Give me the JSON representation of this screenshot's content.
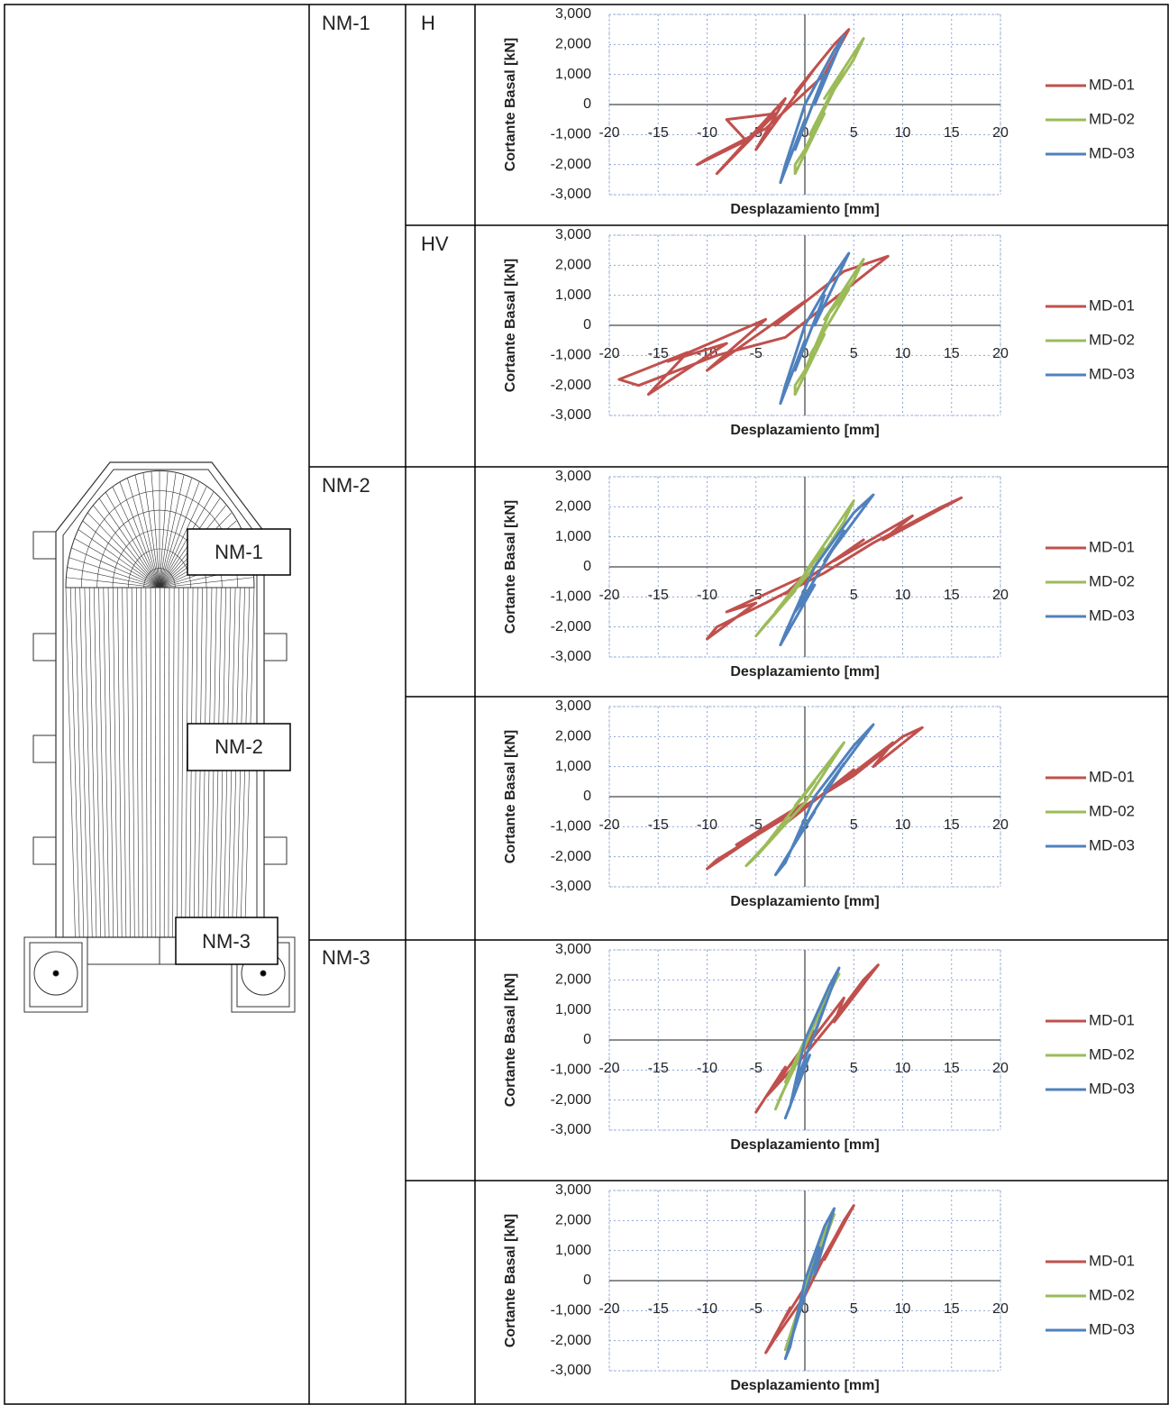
{
  "table": {
    "nm1": "NM-1",
    "h": "H",
    "hv": "HV",
    "nm2": "NM-2",
    "nm3": "NM-3"
  },
  "drawing": {
    "labels": [
      "NM-1",
      "NM-2",
      "NM-3"
    ]
  },
  "chart_data": [
    {
      "type": "line",
      "xlabel": "Desplazamiento [mm]",
      "ylabel": "Cortante Basal [kN]",
      "xlim": [
        -20,
        20
      ],
      "ylim": [
        -3000,
        3000
      ],
      "xticks": [
        -20,
        -15,
        -10,
        -5,
        0,
        5,
        10,
        15,
        20
      ],
      "yticks": [
        {
          "value": -3000,
          "label": "-3,000"
        },
        {
          "value": -2000,
          "label": "-2,000"
        },
        {
          "value": -1000,
          "label": "-1,000"
        },
        0,
        {
          "value": 1000,
          "label": "1,000"
        },
        {
          "value": 2000,
          "label": "2,000"
        },
        {
          "value": 3000,
          "label": "3,000"
        }
      ],
      "grid": true,
      "series": [
        {
          "name": "MD-01",
          "color": "#c0504d",
          "x": [
            -11,
            -6,
            -8,
            -3,
            -9,
            -2,
            -5,
            1,
            -1,
            3,
            4.5,
            2,
            -4,
            -10
          ],
          "values": [
            -2000,
            -1200,
            -500,
            -300,
            -2300,
            200,
            -1500,
            1200,
            400,
            2000,
            2500,
            1000,
            -800,
            -1800
          ]
        },
        {
          "name": "MD-02",
          "color": "#9bbb59",
          "x": [
            -1,
            2,
            0.5,
            4,
            2,
            6,
            5,
            3,
            0,
            -1
          ],
          "values": [
            -2300,
            -300,
            -1000,
            1200,
            200,
            2200,
            1500,
            500,
            -1500,
            -2000
          ]
        },
        {
          "name": "MD-03",
          "color": "#4f81bd",
          "x": [
            -2.5,
            0,
            -1,
            2,
            1,
            4,
            3,
            0,
            -2
          ],
          "values": [
            -2600,
            -500,
            -1500,
            1000,
            0,
            2300,
            1800,
            0,
            -2000
          ]
        }
      ]
    },
    {
      "type": "line",
      "xlabel": "Desplazamiento [mm]",
      "ylabel": "Cortante Basal [kN]",
      "xlim": [
        -20,
        20
      ],
      "ylim": [
        -3000,
        3000
      ],
      "xticks": [
        -20,
        -15,
        -10,
        -5,
        0,
        5,
        10,
        15,
        20
      ],
      "yticks": [
        {
          "value": -3000,
          "label": "-3,000"
        },
        {
          "value": -2000,
          "label": "-2,000"
        },
        {
          "value": -1000,
          "label": "-1,000"
        },
        0,
        {
          "value": 1000,
          "label": "1,000"
        },
        {
          "value": 2000,
          "label": "2,000"
        },
        {
          "value": 3000,
          "label": "3,000"
        }
      ],
      "grid": true,
      "series": [
        {
          "name": "MD-01",
          "color": "#c0504d",
          "x": [
            -19,
            -12,
            -16,
            -8,
            -14,
            -4,
            -10,
            0,
            -3,
            4,
            8.5,
            5,
            -2,
            -9,
            -17
          ],
          "values": [
            -1800,
            -900,
            -2300,
            -600,
            -1200,
            200,
            -1500,
            800,
            0,
            1800,
            2300,
            1400,
            -400,
            -1000,
            -2000
          ]
        },
        {
          "name": "MD-02",
          "color": "#9bbb59",
          "x": [
            -1,
            2,
            0.5,
            4.5,
            2,
            6,
            5,
            2.5,
            0,
            -1
          ],
          "values": [
            -2300,
            -300,
            -1000,
            1200,
            200,
            2200,
            1500,
            400,
            -1500,
            -2000
          ]
        },
        {
          "name": "MD-03",
          "color": "#4f81bd",
          "x": [
            -2.5,
            0,
            -1,
            2,
            1,
            4.5,
            3,
            0,
            -2
          ],
          "values": [
            -2600,
            -500,
            -1500,
            1000,
            0,
            2400,
            1700,
            0,
            -2000
          ]
        }
      ]
    },
    {
      "type": "line",
      "xlabel": "Desplazamiento [mm]",
      "ylabel": "Cortante Basal [kN]",
      "xlim": [
        -20,
        20
      ],
      "ylim": [
        -3000,
        3000
      ],
      "xticks": [
        -20,
        -15,
        -10,
        -5,
        0,
        5,
        10,
        15,
        20
      ],
      "yticks": [
        {
          "value": -3000,
          "label": "-3,000"
        },
        {
          "value": -2000,
          "label": "-2,000"
        },
        {
          "value": -1000,
          "label": "-1,000"
        },
        0,
        {
          "value": 1000,
          "label": "1,000"
        },
        {
          "value": 2000,
          "label": "2,000"
        },
        {
          "value": 3000,
          "label": "3,000"
        }
      ],
      "grid": true,
      "series": [
        {
          "name": "MD-01",
          "color": "#c0504d",
          "x": [
            -10,
            -5,
            -8,
            0,
            -2,
            6,
            3,
            11,
            8,
            16,
            14,
            7,
            2,
            -4,
            -9
          ],
          "values": [
            -2400,
            -1200,
            -1500,
            -300,
            -900,
            900,
            200,
            1700,
            900,
            2300,
            2000,
            800,
            -200,
            -1200,
            -2000
          ]
        },
        {
          "name": "MD-02",
          "color": "#9bbb59",
          "x": [
            -5,
            -1,
            -3,
            2,
            0,
            5,
            4,
            1,
            -4
          ],
          "values": [
            -2300,
            -800,
            -1500,
            600,
            -200,
            2200,
            1500,
            0,
            -1900
          ]
        },
        {
          "name": "MD-03",
          "color": "#4f81bd",
          "x": [
            -2.5,
            1,
            -1,
            4,
            2,
            7,
            5,
            1,
            -2
          ],
          "values": [
            -2600,
            -600,
            -1500,
            1200,
            200,
            2400,
            1800,
            0,
            -2200
          ]
        }
      ]
    },
    {
      "type": "line",
      "xlabel": "Desplazamiento [mm]",
      "ylabel": "Cortante Basal [kN]",
      "xlim": [
        -20,
        20
      ],
      "ylim": [
        -3000,
        3000
      ],
      "xticks": [
        -20,
        -15,
        -10,
        -5,
        0,
        5,
        10,
        15,
        20
      ],
      "yticks": [
        {
          "value": -3000,
          "label": "-3,000"
        },
        {
          "value": -2000,
          "label": "-2,000"
        },
        {
          "value": -1000,
          "label": "-1,000"
        },
        0,
        {
          "value": 1000,
          "label": "1,000"
        },
        {
          "value": 2000,
          "label": "2,000"
        },
        {
          "value": 3000,
          "label": "3,000"
        }
      ],
      "grid": true,
      "series": [
        {
          "name": "MD-01",
          "color": "#c0504d",
          "x": [
            -10,
            -5,
            -7,
            0,
            -2,
            5,
            3,
            9,
            7,
            12,
            10,
            5,
            0,
            -5,
            -9
          ],
          "values": [
            -2400,
            -1300,
            -1600,
            -200,
            -900,
            900,
            300,
            1800,
            1000,
            2300,
            2000,
            700,
            -300,
            -1300,
            -2100
          ]
        },
        {
          "name": "MD-02",
          "color": "#9bbb59",
          "x": [
            -6,
            -2,
            -4,
            1,
            -1,
            4,
            3,
            0,
            -5
          ],
          "values": [
            -2300,
            -900,
            -1600,
            500,
            -300,
            1800,
            1300,
            -200,
            -2000
          ]
        },
        {
          "name": "MD-03",
          "color": "#4f81bd",
          "x": [
            -3,
            1,
            -1,
            4,
            2,
            7,
            5,
            1,
            -2
          ],
          "values": [
            -2600,
            -500,
            -1500,
            1100,
            200,
            2400,
            1700,
            0,
            -2200
          ]
        }
      ]
    },
    {
      "type": "line",
      "xlabel": "Desplazamiento [mm]",
      "ylabel": "Cortante Basal [kN]",
      "xlim": [
        -20,
        20
      ],
      "ylim": [
        -3000,
        3000
      ],
      "xticks": [
        -20,
        -15,
        -10,
        -5,
        0,
        5,
        10,
        15,
        20
      ],
      "yticks": [
        {
          "value": -3000,
          "label": "-3,000"
        },
        {
          "value": -2000,
          "label": "-2,000"
        },
        {
          "value": -1000,
          "label": "-1,000"
        },
        0,
        {
          "value": 1000,
          "label": "1,000"
        },
        {
          "value": 2000,
          "label": "2,000"
        },
        {
          "value": 3000,
          "label": "3,000"
        }
      ],
      "grid": true,
      "series": [
        {
          "name": "MD-01",
          "color": "#c0504d",
          "x": [
            -5,
            -2,
            -3,
            1,
            0,
            4,
            3,
            7.5,
            6,
            3,
            0,
            -4
          ],
          "values": [
            -2400,
            -900,
            -1500,
            300,
            -300,
            1400,
            600,
            2500,
            2000,
            700,
            -500,
            -1900
          ]
        },
        {
          "name": "MD-02",
          "color": "#9bbb59",
          "x": [
            -3,
            -1,
            -2,
            1,
            0,
            3.5,
            2.5,
            0,
            -2.5
          ],
          "values": [
            -2300,
            -800,
            -1400,
            700,
            0,
            2200,
            1600,
            -200,
            -1900
          ]
        },
        {
          "name": "MD-03",
          "color": "#4f81bd",
          "x": [
            -2,
            0.5,
            -1,
            2,
            1,
            3.5,
            2.5,
            0,
            -1.5
          ],
          "values": [
            -2600,
            -500,
            -1500,
            1100,
            200,
            2400,
            1800,
            0,
            -2200
          ]
        }
      ]
    },
    {
      "type": "line",
      "xlabel": "Desplazamiento [mm]",
      "ylabel": "Cortante Basal [kN]",
      "xlim": [
        -20,
        20
      ],
      "ylim": [
        -3000,
        3000
      ],
      "xticks": [
        -20,
        -15,
        -10,
        -5,
        0,
        5,
        10,
        15,
        20
      ],
      "yticks": [
        {
          "value": -3000,
          "label": "-3,000"
        },
        {
          "value": -2000,
          "label": "-2,000"
        },
        {
          "value": -1000,
          "label": "-1,000"
        },
        0,
        {
          "value": 1000,
          "label": "1,000"
        },
        {
          "value": 2000,
          "label": "2,000"
        },
        {
          "value": 3000,
          "label": "3,000"
        }
      ],
      "grid": true,
      "series": [
        {
          "name": "MD-01",
          "color": "#c0504d",
          "x": [
            -4,
            -1.5,
            -2.5,
            1,
            0,
            3,
            2,
            5,
            4,
            2,
            0,
            -3
          ],
          "values": [
            -2400,
            -900,
            -1500,
            300,
            -300,
            1400,
            700,
            2500,
            2000,
            800,
            -500,
            -1900
          ]
        },
        {
          "name": "MD-02",
          "color": "#9bbb59",
          "x": [
            -2,
            -0.5,
            -1,
            1,
            0.5,
            3,
            2,
            0,
            -1.5
          ],
          "values": [
            -2300,
            -800,
            -1400,
            700,
            0,
            2200,
            1600,
            -200,
            -1900
          ]
        },
        {
          "name": "MD-03",
          "color": "#4f81bd",
          "x": [
            -2,
            0,
            -1,
            1.5,
            1,
            3,
            2,
            0,
            -1.5
          ],
          "values": [
            -2600,
            -500,
            -1500,
            1100,
            200,
            2400,
            1800,
            0,
            -2200
          ]
        }
      ]
    }
  ]
}
